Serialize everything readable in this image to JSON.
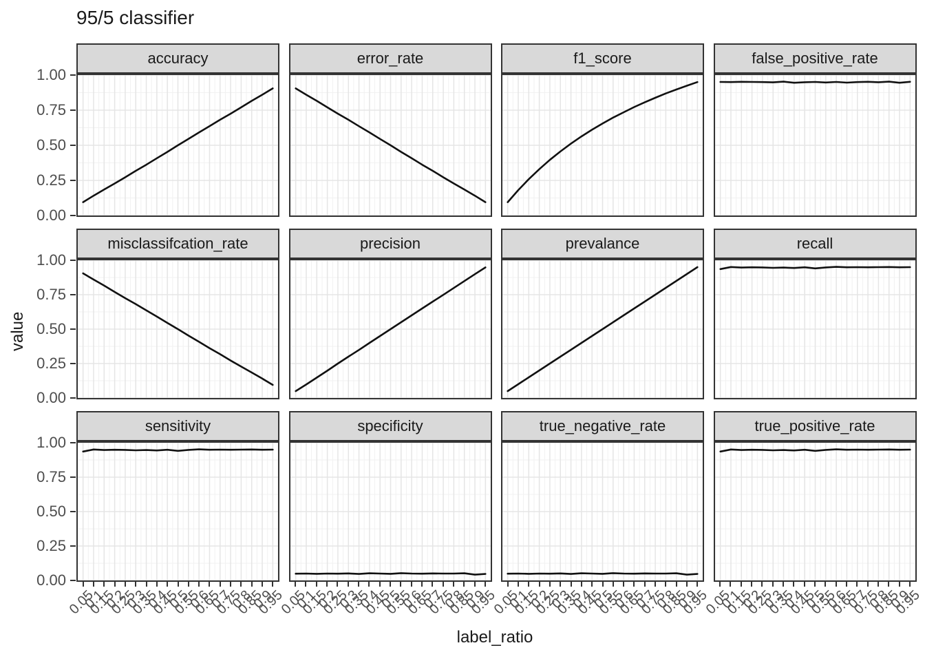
{
  "title": "95/5 classifier",
  "chart_data": {
    "type": "line",
    "title": "95/5 classifier",
    "xlabel": "label_ratio",
    "ylabel": "value",
    "facet_layout": {
      "rows": 3,
      "cols": 4
    },
    "legend": "none",
    "grid": "on",
    "ylim": [
      0,
      1
    ],
    "xlim": [
      0.05,
      0.95
    ],
    "x": [
      0.05,
      0.1,
      0.15,
      0.2,
      0.25,
      0.3,
      0.35,
      0.4,
      0.45,
      0.5,
      0.55,
      0.6,
      0.65,
      0.7,
      0.75,
      0.8,
      0.85,
      0.9,
      0.95
    ],
    "x_tick_labels": [
      "0.05",
      "0.1",
      "0.15",
      "0.2",
      "0.25",
      "0.3",
      "0.35",
      "0.4",
      "0.45",
      "0.5",
      "0.55",
      "0.6",
      "0.65",
      "0.7",
      "0.75",
      "0.8",
      "0.85",
      "0.9",
      "0.95"
    ],
    "y_tick_labels": [
      "0.00",
      "0.25",
      "0.50",
      "0.75",
      "1.00"
    ],
    "y_tick_values": [
      0,
      0.25,
      0.5,
      0.75,
      1
    ],
    "colors": {
      "line": "#111111",
      "strip_bg": "#d9d9d9",
      "panel_border": "#333333",
      "grid_major": "#e5e5e5",
      "grid_minor": "#f1f1f1",
      "tick_text": "#4d4d4d"
    },
    "series": [
      {
        "name": "accuracy",
        "values": [
          0.095,
          0.141,
          0.185,
          0.228,
          0.272,
          0.318,
          0.362,
          0.408,
          0.453,
          0.5,
          0.545,
          0.591,
          0.636,
          0.682,
          0.725,
          0.77,
          0.816,
          0.86,
          0.905
        ]
      },
      {
        "name": "error_rate",
        "values": [
          0.905,
          0.86,
          0.816,
          0.77,
          0.725,
          0.682,
          0.636,
          0.591,
          0.545,
          0.5,
          0.453,
          0.408,
          0.362,
          0.318,
          0.272,
          0.228,
          0.185,
          0.141,
          0.095
        ]
      },
      {
        "name": "f1_score",
        "values": [
          0.095,
          0.181,
          0.259,
          0.33,
          0.396,
          0.456,
          0.512,
          0.563,
          0.611,
          0.655,
          0.697,
          0.735,
          0.772,
          0.806,
          0.838,
          0.869,
          0.897,
          0.924,
          0.95
        ]
      },
      {
        "name": "false_positive_rate",
        "values": [
          0.951,
          0.95,
          0.952,
          0.951,
          0.95,
          0.948,
          0.953,
          0.945,
          0.949,
          0.951,
          0.947,
          0.951,
          0.946,
          0.95,
          0.952,
          0.949,
          0.953,
          0.945,
          0.952
        ]
      },
      {
        "name": "misclassifcation_rate",
        "values": [
          0.905,
          0.86,
          0.816,
          0.77,
          0.725,
          0.682,
          0.636,
          0.591,
          0.545,
          0.5,
          0.453,
          0.408,
          0.362,
          0.318,
          0.272,
          0.228,
          0.185,
          0.141,
          0.095
        ]
      },
      {
        "name": "precision",
        "values": [
          0.05,
          0.098,
          0.148,
          0.198,
          0.25,
          0.3,
          0.349,
          0.4,
          0.45,
          0.5,
          0.55,
          0.6,
          0.65,
          0.7,
          0.749,
          0.799,
          0.849,
          0.899,
          0.948
        ]
      },
      {
        "name": "prevalance",
        "values": [
          0.05,
          0.1,
          0.15,
          0.2,
          0.25,
          0.3,
          0.35,
          0.4,
          0.45,
          0.5,
          0.55,
          0.6,
          0.65,
          0.7,
          0.75,
          0.8,
          0.85,
          0.9,
          0.95
        ]
      },
      {
        "name": "recall",
        "values": [
          0.936,
          0.951,
          0.947,
          0.949,
          0.948,
          0.945,
          0.947,
          0.944,
          0.949,
          0.941,
          0.948,
          0.952,
          0.949,
          0.95,
          0.949,
          0.95,
          0.951,
          0.949,
          0.95
        ]
      },
      {
        "name": "sensitivity",
        "values": [
          0.936,
          0.951,
          0.947,
          0.949,
          0.948,
          0.945,
          0.947,
          0.944,
          0.949,
          0.941,
          0.948,
          0.952,
          0.949,
          0.95,
          0.949,
          0.95,
          0.951,
          0.949,
          0.95
        ]
      },
      {
        "name": "specificity",
        "values": [
          0.049,
          0.05,
          0.048,
          0.05,
          0.049,
          0.051,
          0.047,
          0.052,
          0.05,
          0.048,
          0.053,
          0.05,
          0.049,
          0.051,
          0.05,
          0.05,
          0.052,
          0.042,
          0.047
        ]
      },
      {
        "name": "true_negative_rate",
        "values": [
          0.049,
          0.05,
          0.048,
          0.05,
          0.049,
          0.051,
          0.047,
          0.052,
          0.05,
          0.048,
          0.053,
          0.05,
          0.049,
          0.051,
          0.05,
          0.05,
          0.052,
          0.042,
          0.047
        ]
      },
      {
        "name": "true_positive_rate",
        "values": [
          0.936,
          0.951,
          0.947,
          0.949,
          0.948,
          0.945,
          0.947,
          0.944,
          0.949,
          0.941,
          0.948,
          0.952,
          0.949,
          0.95,
          0.949,
          0.95,
          0.951,
          0.949,
          0.95
        ]
      }
    ]
  }
}
